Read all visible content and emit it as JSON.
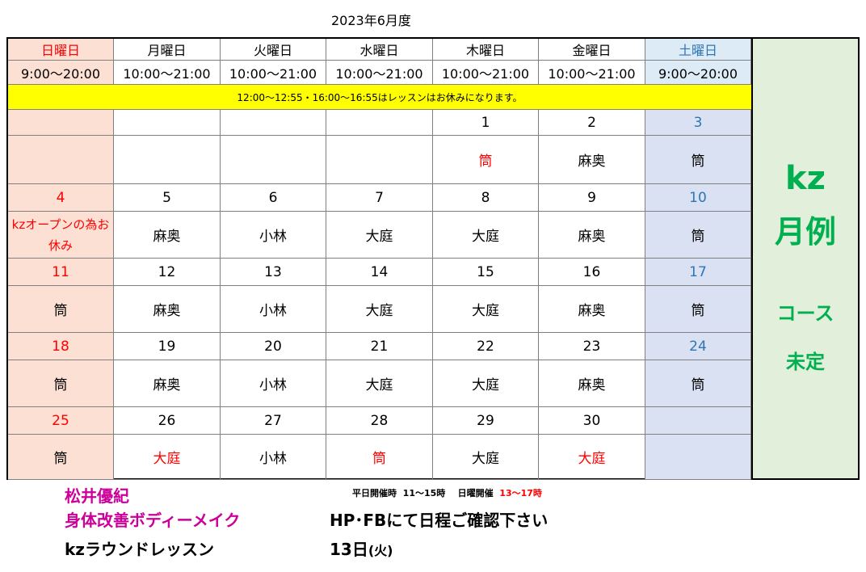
{
  "title": "2023年6月度",
  "weekdays": [
    {
      "label": "日曜日",
      "hours": "9:00～20:00"
    },
    {
      "label": "月曜日",
      "hours": "10:00～21:00"
    },
    {
      "label": "火曜日",
      "hours": "10:00～21:00"
    },
    {
      "label": "水曜日",
      "hours": "10:00～21:00"
    },
    {
      "label": "木曜日",
      "hours": "10:00～21:00"
    },
    {
      "label": "金曜日",
      "hours": "10:00～21:00"
    },
    {
      "label": "土曜日",
      "hours": "9:00～20:00"
    }
  ],
  "banner": "12:00～12:55・16:00～16:55はレッスンはお休みになります。",
  "weeks": [
    {
      "days": [
        "",
        "",
        "",
        "",
        "1",
        "2",
        "3"
      ],
      "instructors": [
        "",
        "",
        "",
        "",
        "筒",
        "麻奥",
        "筒"
      ]
    },
    {
      "days": [
        "4",
        "5",
        "6",
        "7",
        "8",
        "9",
        "10"
      ],
      "instructors": [
        "kzオープンの為お休み",
        "麻奥",
        "小林",
        "大庭",
        "大庭",
        "麻奥",
        "筒"
      ]
    },
    {
      "days": [
        "11",
        "12",
        "13",
        "14",
        "15",
        "16",
        "17"
      ],
      "instructors": [
        "筒",
        "麻奥",
        "小林",
        "大庭",
        "大庭",
        "麻奥",
        "筒"
      ]
    },
    {
      "days": [
        "18",
        "19",
        "20",
        "21",
        "22",
        "23",
        "24"
      ],
      "instructors": [
        "筒",
        "麻奥",
        "小林",
        "大庭",
        "大庭",
        "麻奥",
        "筒"
      ]
    },
    {
      "days": [
        "25",
        "26",
        "27",
        "28",
        "29",
        "30",
        ""
      ],
      "instructors": [
        "筒",
        "大庭",
        "小林",
        "筒",
        "大庭",
        "大庭",
        ""
      ]
    }
  ],
  "side": {
    "line1": "kz",
    "line2": "月例",
    "line3": "コース",
    "line4": "未定"
  },
  "footer": {
    "name": "松井優紀",
    "course1": "身体改善ボディーメイク",
    "course2": "kzラウンドレッスン",
    "schedule_label": "平日開催時",
    "schedule_weekday": "11～15時",
    "schedule_sunday_label": "日曜開催",
    "schedule_sunday": "13～17時",
    "notice": "HP･FBにて日程ご確認下さい",
    "date_num": "13日",
    "date_dow": "(火)"
  },
  "colors": {
    "sunday": "#ff0000",
    "saturday": "#2e75b6",
    "banner": "#ffff00",
    "side_text": "#00b050",
    "footer_pink": "#cc0099"
  }
}
